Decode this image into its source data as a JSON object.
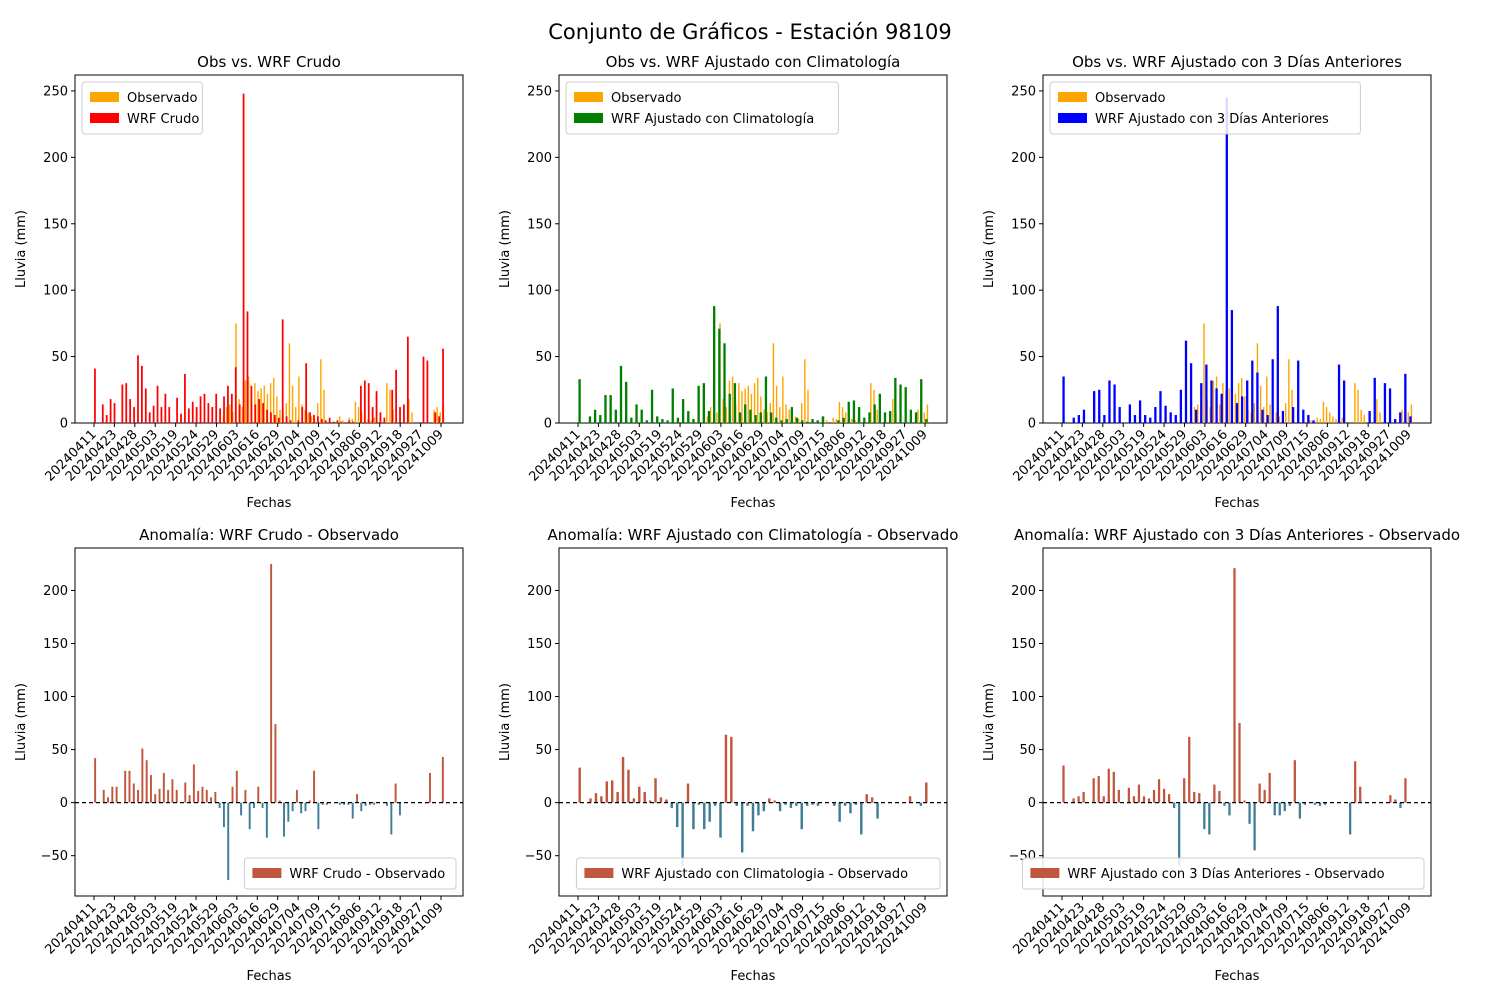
{
  "figure": {
    "suptitle": "Conjunto de Gráficos - Estación 98109",
    "colors": {
      "observed": "#ffa500",
      "wrf_crudo": "#ff0000",
      "wrf_clim": "#008000",
      "wrf_3d": "#0000ff",
      "anom_pos": "#c0563e",
      "anom_neg": "#3d7d96",
      "zero_line": "#000000"
    }
  },
  "chart_data": [
    {
      "type": "bar",
      "title": "Obs vs. WRF Crudo",
      "xlabel": "Fechas",
      "ylabel": "Lluvia (mm)",
      "ylim": [
        0,
        262
      ],
      "yticks": [
        0,
        50,
        100,
        150,
        200,
        250
      ],
      "x_tick_labels": [
        "20240411",
        "20240423",
        "20240428",
        "20240503",
        "20240519",
        "20240524",
        "20240529",
        "20240603",
        "20240616",
        "20240629",
        "20240704",
        "20240709",
        "20240715",
        "20240806",
        "20240912",
        "20240918",
        "20240927",
        "20241009"
      ],
      "legend_position": "top-left",
      "series": [
        {
          "name": "Observado",
          "color_key": "observed",
          "values": [
            0,
            0,
            0,
            0,
            0,
            0,
            0,
            0,
            0,
            0,
            0,
            0,
            0,
            0,
            0,
            0,
            0,
            0,
            0,
            0,
            0,
            0,
            0,
            0,
            0,
            0,
            0,
            0,
            0,
            0,
            0,
            0,
            0,
            0,
            0,
            0,
            0,
            0,
            0,
            0,
            0,
            5,
            12,
            14,
            8,
            75,
            18,
            12,
            32,
            35,
            14,
            30,
            24,
            26,
            28,
            22,
            30,
            34,
            20,
            10,
            8,
            15,
            60,
            28,
            12,
            35,
            14,
            10,
            8,
            5,
            3,
            15,
            48,
            25,
            0,
            0,
            0,
            0,
            5,
            2,
            0,
            4,
            3,
            16,
            12,
            8,
            5,
            3,
            2,
            4,
            0,
            0,
            0,
            30,
            25,
            10,
            6,
            0,
            0,
            0,
            18,
            8,
            0,
            0,
            0,
            0,
            0,
            0,
            10,
            12,
            8,
            14
          ]
        },
        {
          "name": "WRF Crudo",
          "color_key": "wrf_crudo",
          "values": [
            41,
            0,
            14,
            6,
            18,
            15,
            0,
            29,
            30,
            18,
            12,
            51,
            43,
            26,
            8,
            13,
            28,
            12,
            22,
            12,
            0,
            19,
            7,
            37,
            11,
            16,
            12,
            20,
            22,
            15,
            12,
            22,
            11,
            20,
            28,
            22,
            42,
            14,
            248,
            84,
            28,
            14,
            18,
            15,
            10,
            8,
            6,
            4,
            78,
            5,
            2,
            0,
            2,
            12,
            45,
            8,
            6,
            5,
            3,
            2,
            4,
            1,
            2,
            1,
            0,
            2,
            1,
            0,
            28,
            32,
            30,
            12,
            24,
            8,
            4,
            0,
            25,
            40,
            12,
            14,
            65,
            0,
            0,
            0,
            50,
            47,
            0,
            8,
            5,
            56
          ]
        }
      ]
    },
    {
      "type": "bar",
      "title": "Obs vs. WRF Ajustado con Climatología",
      "xlabel": "Fechas",
      "ylabel": "Lluvia (mm)",
      "ylim": [
        0,
        262
      ],
      "yticks": [
        0,
        50,
        100,
        150,
        200,
        250
      ],
      "x_tick_labels": [
        "20240411",
        "20240423",
        "20240428",
        "20240503",
        "20240519",
        "20240524",
        "20240529",
        "20240603",
        "20240616",
        "20240629",
        "20240704",
        "20240709",
        "20240715",
        "20240806",
        "20240912",
        "20240918",
        "20240927",
        "20241009"
      ],
      "legend_position": "top-left",
      "series": [
        {
          "name": "Observado",
          "color_key": "observed",
          "values": [
            0,
            0,
            0,
            0,
            0,
            0,
            0,
            0,
            0,
            0,
            0,
            0,
            0,
            0,
            0,
            0,
            0,
            0,
            0,
            0,
            0,
            0,
            0,
            0,
            0,
            0,
            0,
            0,
            0,
            0,
            0,
            0,
            0,
            0,
            0,
            0,
            0,
            0,
            0,
            0,
            0,
            5,
            12,
            14,
            8,
            75,
            18,
            12,
            32,
            35,
            14,
            30,
            24,
            26,
            28,
            22,
            30,
            34,
            20,
            10,
            8,
            15,
            60,
            28,
            12,
            35,
            14,
            10,
            8,
            5,
            3,
            15,
            48,
            25,
            0,
            0,
            0,
            0,
            5,
            2,
            0,
            4,
            3,
            16,
            12,
            8,
            5,
            3,
            2,
            4,
            0,
            0,
            0,
            30,
            25,
            10,
            6,
            0,
            0,
            0,
            18,
            8,
            0,
            0,
            0,
            0,
            0,
            0,
            10,
            12,
            8,
            14
          ]
        },
        {
          "name": "WRF Ajustado con Climatología",
          "color_key": "wrf_clim",
          "values": [
            33,
            0,
            5,
            10,
            6,
            21,
            21,
            10,
            43,
            31,
            4,
            14,
            10,
            2,
            25,
            5,
            3,
            2,
            26,
            4,
            18,
            9,
            3,
            28,
            30,
            9,
            88,
            71,
            60,
            22,
            30,
            8,
            14,
            10,
            6,
            8,
            35,
            8,
            4,
            2,
            3,
            12,
            4,
            2,
            1,
            3,
            2,
            5,
            0,
            0,
            2,
            4,
            16,
            17,
            12,
            4,
            8,
            14,
            22,
            8,
            9,
            34,
            29,
            27,
            10,
            8,
            33,
            3
          ]
        }
      ]
    },
    {
      "type": "bar",
      "title": "Obs vs. WRF Ajustado con 3 Días Anteriores",
      "xlabel": "Fechas",
      "ylabel": "Lluvia (mm)",
      "ylim": [
        0,
        262
      ],
      "yticks": [
        0,
        50,
        100,
        150,
        200,
        250
      ],
      "x_tick_labels": [
        "20240411",
        "20240423",
        "20240428",
        "20240503",
        "20240519",
        "20240524",
        "20240529",
        "20240603",
        "20240616",
        "20240629",
        "20240704",
        "20240709",
        "20240715",
        "20240806",
        "20240912",
        "20240918",
        "20240927",
        "20241009"
      ],
      "legend_position": "top-left",
      "series": [
        {
          "name": "Observado",
          "color_key": "observed",
          "values": [
            0,
            0,
            0,
            0,
            0,
            0,
            0,
            0,
            0,
            0,
            0,
            0,
            0,
            0,
            0,
            0,
            0,
            0,
            0,
            0,
            0,
            0,
            0,
            0,
            0,
            0,
            0,
            0,
            0,
            0,
            0,
            0,
            0,
            0,
            0,
            0,
            0,
            0,
            0,
            0,
            0,
            5,
            12,
            14,
            8,
            75,
            18,
            12,
            32,
            35,
            14,
            30,
            24,
            26,
            28,
            22,
            30,
            34,
            20,
            10,
            8,
            15,
            60,
            28,
            12,
            35,
            14,
            10,
            8,
            5,
            3,
            15,
            48,
            25,
            0,
            0,
            0,
            0,
            5,
            2,
            0,
            4,
            3,
            16,
            12,
            8,
            5,
            3,
            2,
            4,
            0,
            0,
            0,
            30,
            25,
            10,
            6,
            0,
            0,
            0,
            18,
            8,
            0,
            0,
            0,
            0,
            0,
            0,
            10,
            12,
            8,
            14
          ]
        },
        {
          "name": "WRF Ajustado con 3 Días Anteriores",
          "color_key": "wrf_3d",
          "values": [
            35,
            0,
            4,
            6,
            10,
            0,
            24,
            25,
            6,
            32,
            29,
            12,
            0,
            14,
            6,
            17,
            6,
            4,
            12,
            24,
            13,
            8,
            6,
            25,
            62,
            45,
            10,
            30,
            44,
            32,
            26,
            22,
            245,
            85,
            15,
            20,
            32,
            47,
            38,
            10,
            6,
            48,
            88,
            9,
            0,
            12,
            47,
            10,
            6,
            2,
            0,
            0,
            0,
            0,
            44,
            32,
            0,
            0,
            0,
            0,
            9,
            34,
            0,
            30,
            26,
            3,
            8,
            37,
            5
          ]
        }
      ]
    },
    {
      "type": "bar",
      "title": "Anomalía: WRF Crudo - Observado",
      "xlabel": "Fechas",
      "ylabel": "Lluvia (mm)",
      "ylim": [
        -88,
        240
      ],
      "yticks": [
        -50,
        0,
        50,
        100,
        150,
        200
      ],
      "x_tick_labels": [
        "20240411",
        "20240423",
        "20240428",
        "20240503",
        "20240519",
        "20240524",
        "20240529",
        "20240603",
        "20240616",
        "20240629",
        "20240704",
        "20240709",
        "20240715",
        "20240806",
        "20240912",
        "20240918",
        "20240927",
        "20241009"
      ],
      "legend_position": "bottom-right",
      "reference_line": 0,
      "series": [
        {
          "name": "WRF Crudo - Observado",
          "color_key": "anom_pos",
          "values": [
            42,
            0,
            12,
            5,
            15,
            15,
            0,
            30,
            30,
            18,
            12,
            51,
            40,
            26,
            8,
            13,
            28,
            12,
            22,
            12,
            0,
            19,
            7,
            36,
            11,
            15,
            12,
            5,
            10,
            -5,
            -23,
            -73,
            15,
            30,
            -12,
            12,
            -25,
            -5,
            15,
            -5,
            -33,
            225,
            74,
            2,
            -32,
            -18,
            -8,
            12,
            -10,
            -8,
            2,
            30,
            -25,
            -2,
            -2,
            0,
            0,
            -2,
            -2,
            -2,
            -15,
            8,
            -8,
            -3,
            -2,
            -2,
            0,
            0,
            -3,
            -30,
            18,
            -12,
            0,
            0,
            0,
            0,
            0,
            0,
            28,
            0,
            0,
            43
          ]
        }
      ]
    },
    {
      "type": "bar",
      "title": "Anomalía: WRF Ajustado con Climatología - Observado",
      "xlabel": "Fechas",
      "ylabel": "Lluvia (mm)",
      "ylim": [
        -88,
        240
      ],
      "yticks": [
        -50,
        0,
        50,
        100,
        150,
        200
      ],
      "x_tick_labels": [
        "20240411",
        "20240423",
        "20240428",
        "20240503",
        "20240519",
        "20240524",
        "20240529",
        "20240603",
        "20240616",
        "20240629",
        "20240704",
        "20240709",
        "20240715",
        "20240806",
        "20240912",
        "20240918",
        "20240927",
        "20241009"
      ],
      "legend_position": "bottom-right",
      "reference_line": 0,
      "series": [
        {
          "name": "WRF Ajustado con Climatologia - Observado",
          "color_key": "anom_pos",
          "values": [
            33,
            0,
            4,
            9,
            6,
            20,
            21,
            10,
            43,
            31,
            4,
            15,
            10,
            2,
            23,
            5,
            3,
            -5,
            -23,
            -60,
            18,
            -25,
            -2,
            -25,
            -18,
            -3,
            -33,
            64,
            62,
            -3,
            -47,
            -3,
            -27,
            -12,
            -8,
            4,
            2,
            -8,
            -2,
            -5,
            -3,
            -25,
            -3,
            -2,
            -3,
            0,
            0,
            -3,
            -18,
            -3,
            -10,
            -2,
            -30,
            8,
            5,
            -15,
            0,
            0,
            0,
            0,
            0,
            6,
            0,
            -3,
            19
          ]
        }
      ]
    },
    {
      "type": "bar",
      "title": "Anomalía: WRF Ajustado con 3 Días Anteriores - Observado",
      "xlabel": "Fechas",
      "ylabel": "Lluvia (mm)",
      "ylim": [
        -88,
        240
      ],
      "yticks": [
        -50,
        0,
        50,
        100,
        150,
        200
      ],
      "x_tick_labels": [
        "20240411",
        "20240423",
        "20240428",
        "20240503",
        "20240519",
        "20240524",
        "20240529",
        "20240603",
        "20240616",
        "20240629",
        "20240704",
        "20240709",
        "20240715",
        "20240806",
        "20240912",
        "20240918",
        "20240927",
        "20241009"
      ],
      "legend_position": "bottom-right",
      "reference_line": 0,
      "series": [
        {
          "name": "WRF Ajustado con 3 Días Anteriores - Observado",
          "color_key": "anom_pos",
          "values": [
            35,
            0,
            4,
            6,
            10,
            0,
            23,
            25,
            6,
            32,
            29,
            12,
            0,
            14,
            6,
            17,
            6,
            4,
            12,
            22,
            13,
            8,
            -5,
            -60,
            23,
            62,
            10,
            9,
            -25,
            -30,
            17,
            11,
            -3,
            -12,
            221,
            75,
            2,
            -20,
            -45,
            18,
            12,
            28,
            -12,
            -12,
            -8,
            -3,
            40,
            -15,
            -2,
            0,
            -2,
            -3,
            -2,
            0,
            0,
            0,
            0,
            -30,
            39,
            15,
            0,
            0,
            0,
            0,
            0,
            7,
            3,
            -5,
            23,
            0
          ]
        }
      ]
    }
  ]
}
